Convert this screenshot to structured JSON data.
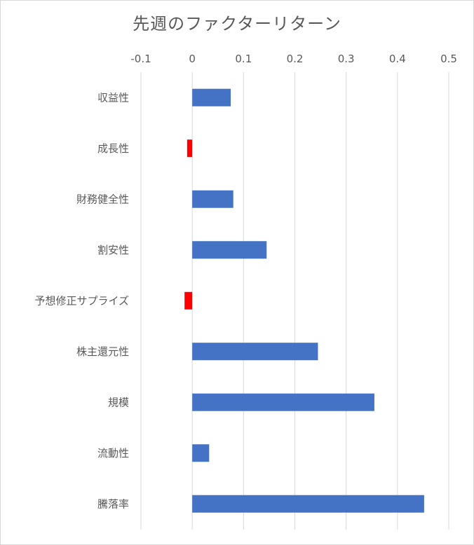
{
  "chart_data": {
    "type": "bar",
    "orientation": "horizontal",
    "title": "先週のファクターリターン",
    "xlabel": "",
    "ylabel": "",
    "xlim": [
      -0.1,
      0.5
    ],
    "xticks": [
      -0.1,
      0,
      0.1,
      0.2,
      0.3,
      0.4,
      0.5
    ],
    "xtick_labels": [
      "-0.1",
      "0",
      "0.1",
      "0.2",
      "0.3",
      "0.4",
      "0.5"
    ],
    "grid": true,
    "legend": "none",
    "categories": [
      "収益性",
      "成長性",
      "財務健全性",
      "割安性",
      "予想修正サプライズ",
      "株主還元性",
      "規模",
      "流動性",
      "騰落率"
    ],
    "values": [
      0.075,
      -0.01,
      0.08,
      0.145,
      -0.015,
      0.245,
      0.355,
      0.033,
      0.452
    ],
    "colors": {
      "positive": "#4472c4",
      "negative": "#ff0000",
      "grid": "#d9d9d9",
      "text": "#595959"
    }
  }
}
